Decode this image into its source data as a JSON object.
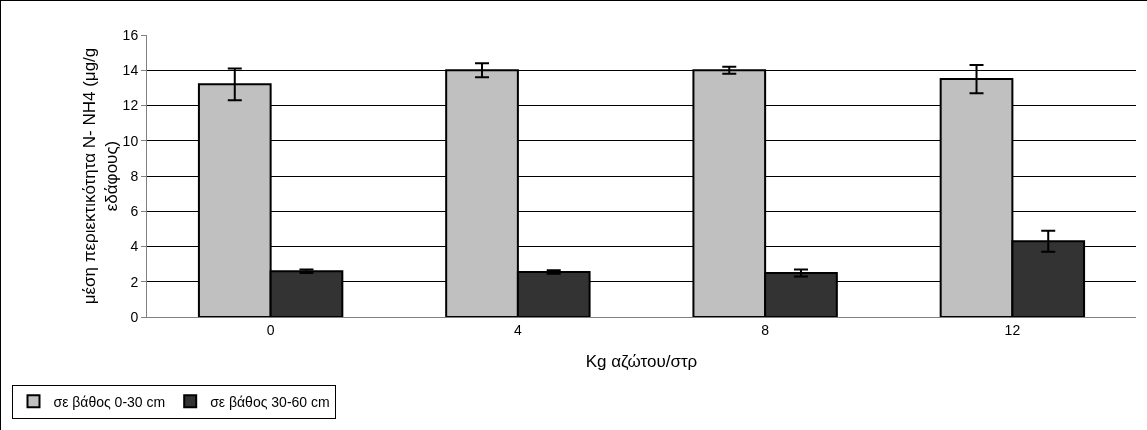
{
  "chart_data": {
    "type": "bar",
    "categories": [
      "0",
      "4",
      "8",
      "12"
    ],
    "xlabel": "Kg αζώτου/στρ",
    "ylabel": "μέση περιεκτικότητα N- NH4 (μg/g εδάφους)",
    "series": [
      {
        "name": "σε βάθος 0-30 cm",
        "color": "#c0c0c0",
        "values": [
          13.2,
          14.0,
          14.0,
          13.5
        ],
        "errors": [
          0.9,
          0.4,
          0.2,
          0.8
        ]
      },
      {
        "name": "σε βάθος 30-60 cm",
        "color": "#333333",
        "values": [
          2.6,
          2.55,
          2.5,
          4.3
        ],
        "errors": [
          0.1,
          0.1,
          0.2,
          0.6
        ]
      }
    ],
    "ylim": [
      0,
      16
    ],
    "yticks": [
      0,
      2,
      4,
      6,
      8,
      10,
      12,
      14,
      16
    ],
    "grid": "y",
    "legend": "bottom left"
  }
}
